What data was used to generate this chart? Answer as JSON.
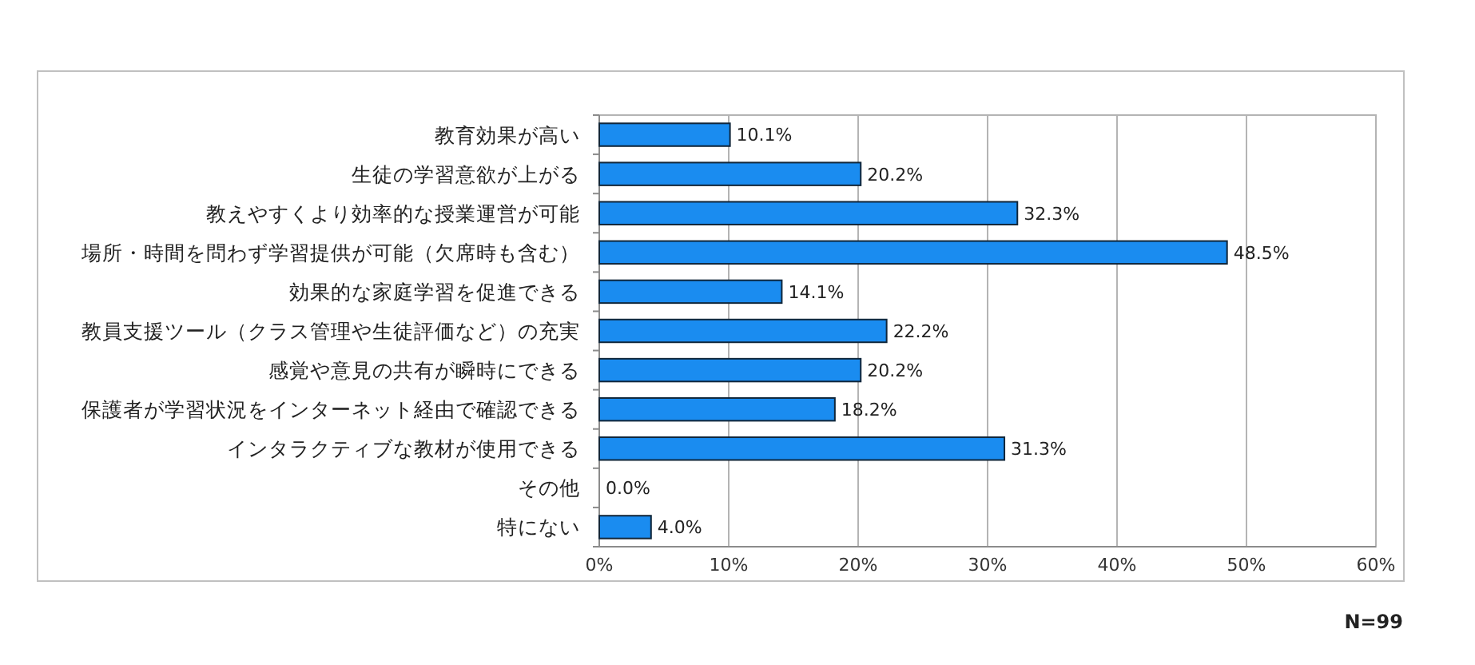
{
  "chart_data": {
    "type": "bar",
    "orientation": "horizontal",
    "categories": [
      "教育効果が高い",
      "生徒の学習意欲が上がる",
      "教えやすくより効率的な授業運営が可能",
      "場所・時間を問わず学習提供が可能（欠席時も含む）",
      "効果的な家庭学習を促進できる",
      "教員支援ツール（クラス管理や生徒評価など）の充実",
      "感覚や意見の共有が瞬時にできる",
      "保護者が学習状況をインターネット経由で確認できる",
      "インタラクティブな教材が使用できる",
      "その他",
      "特にない"
    ],
    "values": [
      10.1,
      20.2,
      32.3,
      48.5,
      14.1,
      22.2,
      20.2,
      18.2,
      31.3,
      0.0,
      4.0
    ],
    "value_labels": [
      "10.1%",
      "20.2%",
      "32.3%",
      "48.5%",
      "14.1%",
      "22.2%",
      "20.2%",
      "18.2%",
      "31.3%",
      "0.0%",
      "4.0%"
    ],
    "color": "#1a8cf0",
    "xlim": [
      0,
      60
    ],
    "xticks": [
      {
        "value": 0,
        "label": "0%"
      },
      {
        "value": 10,
        "label": "10%"
      },
      {
        "value": 20,
        "label": "20%"
      },
      {
        "value": 30,
        "label": "30%"
      },
      {
        "value": 40,
        "label": "40%"
      },
      {
        "value": 50,
        "label": "50%"
      },
      {
        "value": 60,
        "label": "60%"
      }
    ],
    "grid": "x",
    "annotations": [
      "N=99"
    ]
  }
}
